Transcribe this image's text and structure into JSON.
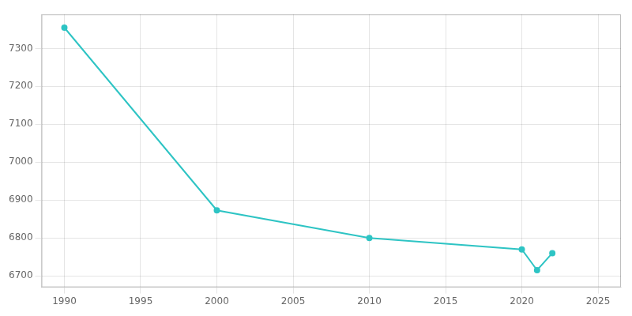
{
  "chart_data": {
    "type": "line",
    "x": [
      1990,
      2000,
      2010,
      2020,
      2021,
      2022
    ],
    "values": [
      7355,
      6873,
      6800,
      6770,
      6715,
      6760
    ],
    "color": "#2EC4C4",
    "marker": "o",
    "xlim": [
      1988.5,
      2026.5
    ],
    "ylim": [
      6670,
      7390
    ],
    "xticks": [
      1990,
      1995,
      2000,
      2005,
      2010,
      2015,
      2020,
      2025
    ],
    "yticks": [
      6700,
      6800,
      6900,
      7000,
      7100,
      7200,
      7300
    ],
    "grid": true
  }
}
